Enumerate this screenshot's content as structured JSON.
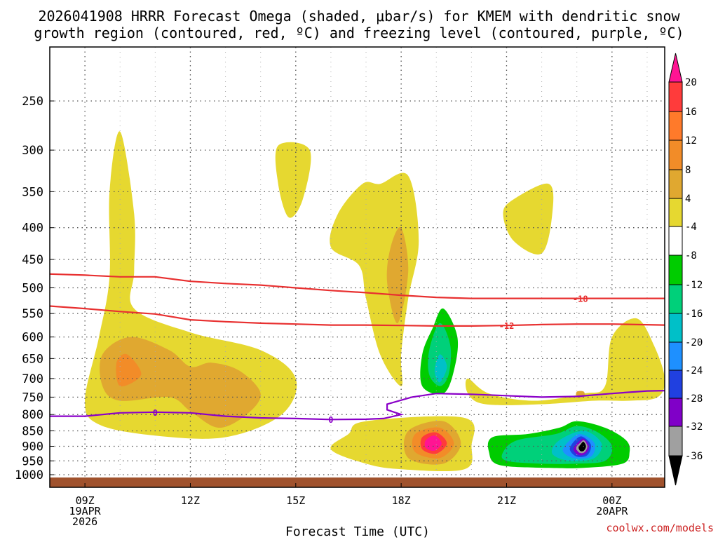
{
  "chart_data": {
    "type": "heatmap",
    "title_line1": "2026041908 HRRR Forecast Omega (shaded, μbar/s) for KMEM with dendritic snow",
    "title_line2": "growth region (contoured, red, ºC) and freezing level (contoured, purple, ºC)",
    "xlabel": "Forecast Time (UTC)",
    "credit": "coolwx.com/models",
    "x_range": [
      8,
      25.5
    ],
    "y_range_hpa": [
      200,
      1020
    ],
    "y_ticks": [
      250,
      300,
      350,
      400,
      450,
      500,
      550,
      600,
      650,
      700,
      750,
      800,
      850,
      900,
      950,
      1000
    ],
    "x_ticks": [
      {
        "hour": 9,
        "lines": [
          "09Z",
          "19APR",
          "2026"
        ]
      },
      {
        "hour": 12,
        "lines": [
          "12Z"
        ]
      },
      {
        "hour": 15,
        "lines": [
          "15Z"
        ]
      },
      {
        "hour": 18,
        "lines": [
          "18Z"
        ]
      },
      {
        "hour": 21,
        "lines": [
          "21Z"
        ]
      },
      {
        "hour": 24,
        "lines": [
          "00Z",
          "20APR"
        ]
      }
    ],
    "colorbar": {
      "labels": [
        "20",
        "16",
        "12",
        "8",
        "4",
        "-4",
        "-8",
        "-12",
        "-16",
        "-20",
        "-24",
        "-28",
        "-32",
        "-36"
      ],
      "colors": [
        "#ff1493",
        "#ff3b3b",
        "#ff7a2a",
        "#f28c28",
        "#e0a830",
        "#e6d830",
        "#ffffff",
        "#00cc00",
        "#00d07a",
        "#00c0c8",
        "#1e90ff",
        "#2040e0",
        "#8000c8",
        "#a0a0a0",
        "#000000"
      ]
    },
    "omega_regions": [
      {
        "level": 4,
        "color": "#e6d830",
        "points": [
          [
            10.0,
            280
          ],
          [
            10.4,
            380
          ],
          [
            10.4,
            470
          ],
          [
            10.4,
            540
          ],
          [
            12.0,
            590
          ],
          [
            14.0,
            630
          ],
          [
            15.0,
            700
          ],
          [
            14.6,
            800
          ],
          [
            13.0,
            870
          ],
          [
            11.0,
            865
          ],
          [
            9.4,
            830
          ],
          [
            9.0,
            760
          ],
          [
            9.4,
            600
          ],
          [
            9.7,
            480
          ],
          [
            9.7,
            350
          ]
        ]
      },
      {
        "level": 4,
        "color": "#e6d830",
        "points": [
          [
            14.5,
            295
          ],
          [
            15.4,
            300
          ],
          [
            15.2,
            360
          ],
          [
            14.8,
            385
          ],
          [
            14.5,
            340
          ]
        ]
      },
      {
        "level": 4,
        "color": "#e6d830",
        "points": [
          [
            17.4,
            340
          ],
          [
            18.2,
            330
          ],
          [
            18.5,
            420
          ],
          [
            18.2,
            520
          ],
          [
            18.0,
            640
          ],
          [
            18.0,
            720
          ],
          [
            17.4,
            640
          ],
          [
            17.0,
            520
          ],
          [
            16.8,
            460
          ],
          [
            16.0,
            430
          ],
          [
            16.2,
            380
          ],
          [
            16.9,
            340
          ]
        ]
      },
      {
        "level": 4,
        "color": "#e6d830",
        "points": [
          [
            21.2,
            360
          ],
          [
            22.2,
            340
          ],
          [
            22.3,
            380
          ],
          [
            22.0,
            440
          ],
          [
            21.2,
            420
          ],
          [
            20.9,
            380
          ]
        ]
      },
      {
        "level": 4,
        "color": "#e6d830",
        "points": [
          [
            17.0,
            820
          ],
          [
            19.8,
            810
          ],
          [
            20.0,
            900
          ],
          [
            19.8,
            980
          ],
          [
            18.0,
            980
          ],
          [
            17.0,
            960
          ],
          [
            16.0,
            910
          ],
          [
            16.5,
            860
          ]
        ]
      },
      {
        "level": 4,
        "color": "#e6d830",
        "points": [
          [
            19.9,
            700
          ],
          [
            20.5,
            740
          ],
          [
            21.8,
            760
          ],
          [
            23.2,
            740
          ],
          [
            23.8,
            720
          ],
          [
            24.0,
            600
          ],
          [
            24.7,
            560
          ],
          [
            25.2,
            620
          ],
          [
            25.5,
            700
          ],
          [
            25.3,
            750
          ],
          [
            24.5,
            760
          ],
          [
            23.5,
            760
          ],
          [
            22.0,
            770
          ],
          [
            20.4,
            770
          ],
          [
            19.9,
            740
          ]
        ]
      },
      {
        "level": 8,
        "color": "#e0a830",
        "points": [
          [
            9.5,
            640
          ],
          [
            10.3,
            600
          ],
          [
            11.4,
            630
          ],
          [
            12.0,
            670
          ],
          [
            12.6,
            660
          ],
          [
            13.4,
            680
          ],
          [
            14.0,
            740
          ],
          [
            13.6,
            800
          ],
          [
            12.8,
            840
          ],
          [
            12.0,
            790
          ],
          [
            11.4,
            750
          ],
          [
            10.0,
            760
          ],
          [
            9.5,
            720
          ]
        ]
      },
      {
        "level": 8,
        "color": "#e0a830",
        "points": [
          [
            17.7,
            430
          ],
          [
            18.0,
            400
          ],
          [
            18.2,
            470
          ],
          [
            17.9,
            570
          ],
          [
            17.6,
            490
          ]
        ]
      },
      {
        "level": 8,
        "color": "#e0a830",
        "points": [
          [
            23.0,
            735
          ],
          [
            23.2,
            735
          ],
          [
            23.2,
            750
          ],
          [
            23.0,
            750
          ]
        ]
      },
      {
        "level": 12,
        "color": "#f28c28",
        "points": [
          [
            9.9,
            660
          ],
          [
            10.2,
            640
          ],
          [
            10.6,
            690
          ],
          [
            10.0,
            720
          ]
        ]
      },
      {
        "level": 8,
        "color": "#e0a830",
        "points": [
          [
            18.2,
            850
          ],
          [
            19.2,
            820
          ],
          [
            19.7,
            890
          ],
          [
            19.2,
            960
          ],
          [
            18.2,
            940
          ]
        ]
      },
      {
        "level": 12,
        "color": "#f28c28",
        "points": [
          [
            18.4,
            860
          ],
          [
            19.1,
            840
          ],
          [
            19.5,
            890
          ],
          [
            19.1,
            940
          ],
          [
            18.4,
            920
          ]
        ]
      },
      {
        "level": 16,
        "color": "#ff3b3b",
        "points": [
          [
            18.6,
            870
          ],
          [
            19.0,
            855
          ],
          [
            19.3,
            890
          ],
          [
            19.0,
            925
          ],
          [
            18.6,
            910
          ]
        ]
      },
      {
        "level": 20,
        "color": "#ff1493",
        "points": [
          [
            18.7,
            880
          ],
          [
            18.95,
            865
          ],
          [
            19.15,
            890
          ],
          [
            18.95,
            915
          ],
          [
            18.7,
            905
          ]
        ]
      },
      {
        "level": -4,
        "color": "#00cc00",
        "points": [
          [
            19.2,
            540
          ],
          [
            19.6,
            600
          ],
          [
            19.5,
            680
          ],
          [
            19.2,
            740
          ],
          [
            18.6,
            720
          ],
          [
            18.6,
            640
          ],
          [
            18.9,
            580
          ]
        ]
      },
      {
        "level": -4,
        "color": "#00cc00",
        "points": [
          [
            20.6,
            870
          ],
          [
            21.6,
            860
          ],
          [
            22.5,
            840
          ],
          [
            23.0,
            820
          ],
          [
            23.8,
            840
          ],
          [
            24.4,
            880
          ],
          [
            24.5,
            920
          ],
          [
            24.3,
            960
          ],
          [
            23.2,
            975
          ],
          [
            22.2,
            975
          ],
          [
            20.8,
            965
          ],
          [
            20.5,
            920
          ]
        ]
      },
      {
        "level": -8,
        "color": "#00d07a",
        "points": [
          [
            19.1,
            570
          ],
          [
            19.4,
            620
          ],
          [
            19.35,
            690
          ],
          [
            19.1,
            720
          ],
          [
            18.8,
            690
          ],
          [
            18.8,
            630
          ]
        ]
      },
      {
        "level": -8,
        "color": "#00d07a",
        "points": [
          [
            21.3,
            880
          ],
          [
            22.4,
            860
          ],
          [
            23.0,
            835
          ],
          [
            23.6,
            855
          ],
          [
            24.0,
            900
          ],
          [
            23.8,
            950
          ],
          [
            23.0,
            960
          ],
          [
            22.0,
            960
          ],
          [
            21.0,
            950
          ],
          [
            20.9,
            920
          ]
        ]
      },
      {
        "level": -12,
        "color": "#00c0c8",
        "points": [
          [
            19.1,
            640
          ],
          [
            19.3,
            670
          ],
          [
            19.1,
            710
          ],
          [
            18.95,
            680
          ]
        ]
      },
      {
        "level": -12,
        "color": "#00c0c8",
        "points": [
          [
            22.5,
            880
          ],
          [
            23.2,
            850
          ],
          [
            23.7,
            890
          ],
          [
            23.5,
            940
          ],
          [
            22.8,
            950
          ],
          [
            22.3,
            925
          ]
        ]
      },
      {
        "level": -16,
        "color": "#1e90ff",
        "points": [
          [
            22.8,
            880
          ],
          [
            23.1,
            860
          ],
          [
            23.5,
            890
          ],
          [
            23.4,
            935
          ],
          [
            22.9,
            940
          ],
          [
            22.6,
            915
          ]
        ]
      },
      {
        "level": -24,
        "color": "#2040e0",
        "points": [
          [
            22.95,
            880
          ],
          [
            23.15,
            868
          ],
          [
            23.4,
            895
          ],
          [
            23.3,
            930
          ],
          [
            23.0,
            935
          ],
          [
            22.8,
            910
          ]
        ]
      },
      {
        "level": -28,
        "color": "#8000c8",
        "points": [
          [
            23.05,
            885
          ],
          [
            23.2,
            875
          ],
          [
            23.35,
            900
          ],
          [
            23.25,
            925
          ],
          [
            23.05,
            930
          ],
          [
            22.9,
            910
          ]
        ]
      },
      {
        "level": -32,
        "color": "#a0a0a0",
        "points": [
          [
            23.1,
            888
          ],
          [
            23.2,
            880
          ],
          [
            23.3,
            900
          ],
          [
            23.22,
            920
          ],
          [
            23.08,
            922
          ],
          [
            22.98,
            905
          ]
        ]
      },
      {
        "level": -36,
        "color": "#000000",
        "points": [
          [
            23.12,
            892
          ],
          [
            23.19,
            885
          ],
          [
            23.26,
            900
          ],
          [
            23.2,
            915
          ],
          [
            23.1,
            916
          ],
          [
            23.05,
            904
          ]
        ]
      }
    ],
    "isotherms": [
      {
        "value": -18,
        "label": "-18",
        "color": "#e83030",
        "label_at": [
          23.1,
          520
        ],
        "points": [
          [
            8,
            475
          ],
          [
            9,
            477
          ],
          [
            10,
            480
          ],
          [
            11,
            480
          ],
          [
            12,
            488
          ],
          [
            13,
            492
          ],
          [
            14,
            495
          ],
          [
            15,
            500
          ],
          [
            16,
            505
          ],
          [
            17,
            509
          ],
          [
            18,
            514
          ],
          [
            19,
            518
          ],
          [
            20,
            520
          ],
          [
            21,
            520
          ],
          [
            22,
            520
          ],
          [
            23,
            520
          ],
          [
            24,
            520
          ],
          [
            25.5,
            520
          ]
        ]
      },
      {
        "value": -12,
        "label": "-12",
        "color": "#e83030",
        "label_at": [
          21.0,
          575
        ],
        "points": [
          [
            8,
            535
          ],
          [
            9,
            540
          ],
          [
            10,
            546
          ],
          [
            11,
            551
          ],
          [
            12,
            563
          ],
          [
            13,
            567
          ],
          [
            14,
            570
          ],
          [
            15,
            572
          ],
          [
            16,
            574
          ],
          [
            17,
            574
          ],
          [
            18,
            575
          ],
          [
            19,
            576
          ],
          [
            20,
            576
          ],
          [
            21,
            575
          ],
          [
            22,
            573
          ],
          [
            23,
            572
          ],
          [
            24,
            572
          ],
          [
            25.5,
            574
          ]
        ]
      },
      {
        "value": 0,
        "label": "0",
        "color": "#8a00c8",
        "label_at": [
          11.0,
          793
        ],
        "label2": "0",
        "label2_at": [
          16.0,
          814
        ],
        "points": [
          [
            8,
            805
          ],
          [
            9,
            805
          ],
          [
            10,
            795
          ],
          [
            11,
            793
          ],
          [
            12,
            795
          ],
          [
            13,
            805
          ],
          [
            14,
            810
          ],
          [
            15,
            812
          ],
          [
            16,
            815
          ],
          [
            17,
            814
          ],
          [
            17.5,
            812
          ],
          [
            18,
            800
          ],
          [
            17.6,
            786
          ],
          [
            17.6,
            770
          ],
          [
            18.3,
            750
          ],
          [
            19,
            740
          ],
          [
            20,
            742
          ],
          [
            21,
            746
          ],
          [
            22,
            750
          ],
          [
            23,
            748
          ],
          [
            24,
            740
          ],
          [
            25,
            733
          ],
          [
            25.5,
            732
          ]
        ]
      }
    ]
  }
}
